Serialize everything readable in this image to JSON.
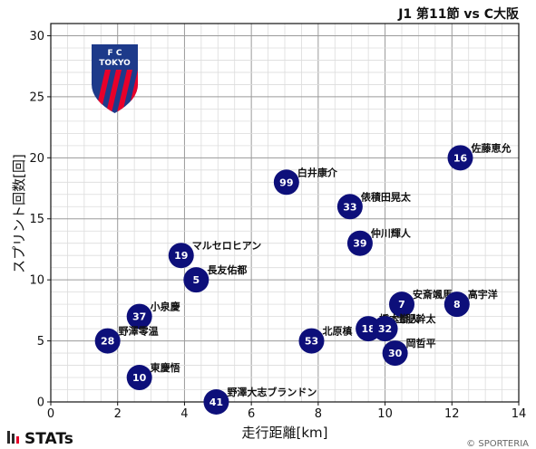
{
  "chart_data": {
    "type": "scatter",
    "title": "J1 第11節 vs C大阪",
    "xlabel": "走行距離[km]",
    "ylabel": "スプリント回数[回]",
    "xlim": [
      0,
      14
    ],
    "ylim": [
      0,
      31
    ],
    "xticks": [
      "0",
      "2",
      "4",
      "6",
      "8",
      "10",
      "12",
      "14"
    ],
    "yticks": [
      "0",
      "5",
      "10",
      "15",
      "20",
      "25",
      "30"
    ],
    "grid": true,
    "points": [
      {
        "number": "16",
        "name": "佐藤恵允",
        "x": 12.25,
        "y": 20
      },
      {
        "number": "99",
        "name": "白井康介",
        "x": 7.05,
        "y": 18
      },
      {
        "number": "33",
        "name": "俵積田晃太",
        "x": 8.95,
        "y": 16
      },
      {
        "number": "39",
        "name": "仲川輝人",
        "x": 9.25,
        "y": 13
      },
      {
        "number": "19",
        "name": "マルセロヒアン",
        "x": 3.9,
        "y": 12
      },
      {
        "number": "5",
        "name": "長友佑都",
        "x": 4.35,
        "y": 10
      },
      {
        "number": "7",
        "name": "安斎颯馬",
        "x": 10.5,
        "y": 8
      },
      {
        "number": "8",
        "name": "高宇洋",
        "x": 12.15,
        "y": 8
      },
      {
        "number": "37",
        "name": "小泉慶",
        "x": 2.65,
        "y": 7
      },
      {
        "number": "18",
        "name": "橋本拳人",
        "x": 9.5,
        "y": 6
      },
      {
        "number": "32",
        "name": "土肥幹太",
        "x": 10.0,
        "y": 6
      },
      {
        "number": "28",
        "name": "野澤零温",
        "x": 1.7,
        "y": 5
      },
      {
        "number": "53",
        "name": "北原槙",
        "x": 7.8,
        "y": 5
      },
      {
        "number": "30",
        "name": "岡哲平",
        "x": 10.3,
        "y": 4
      },
      {
        "number": "10",
        "name": "東慶悟",
        "x": 2.65,
        "y": 2
      },
      {
        "number": "41",
        "name": "野澤大志ブランドン",
        "x": 4.95,
        "y": 0
      }
    ]
  },
  "logo": {
    "top_text": "F  C",
    "bottom_text": "TOKYO"
  },
  "footer": {
    "brand": "STATs",
    "copyright": "© SPORTERIA"
  },
  "colors": {
    "marker": "#0d0f7a",
    "logo_blue": "#1d3a8a",
    "logo_red": "#e8002a"
  }
}
